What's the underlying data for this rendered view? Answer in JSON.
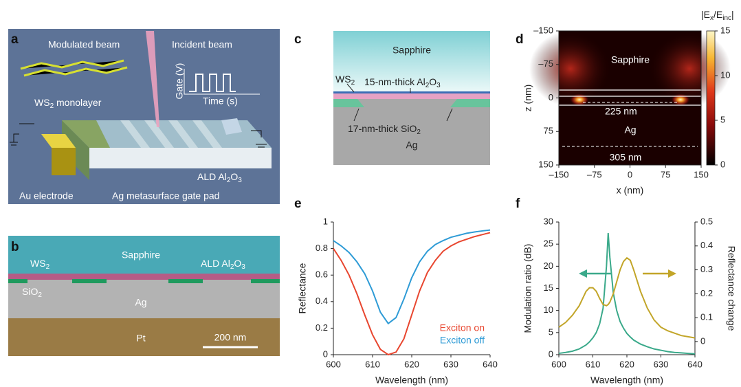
{
  "panels": {
    "a": {
      "label": "a",
      "modulated_beam": "Modulated beam",
      "incident_beam": "Incident beam",
      "gate_axis": "Gate (V)",
      "time_axis": "Time (s)",
      "ws2_monolayer": [
        "WS",
        "2",
        " monolayer"
      ],
      "ald": [
        "ALD Al",
        "2",
        "O",
        "3"
      ],
      "au_electrode": "Au electrode",
      "ag_pad": "Ag metasurface gate pad"
    },
    "b": {
      "label": "b",
      "sapphire": "Sapphire",
      "ws2": [
        "WS",
        "2"
      ],
      "ald": [
        "ALD Al",
        "2",
        "O",
        "3"
      ],
      "sio2": [
        "SiO",
        "2"
      ],
      "ag": "Ag",
      "pt": "Pt",
      "scale_bar": "200 nm"
    },
    "c": {
      "label": "c",
      "sapphire": "Sapphire",
      "ws2": [
        "WS",
        "2"
      ],
      "al2o3": [
        "15-nm-thick Al",
        "2",
        "O",
        "3"
      ],
      "sio2": [
        "17-nm-thick SiO",
        "2"
      ],
      "ag": "Ag"
    }
  },
  "chart_data": [
    {
      "type": "heatmap",
      "label": "d",
      "xlabel": "x (nm)",
      "ylabel": "z (nm)",
      "xlim": [
        -150,
        150
      ],
      "ylim": [
        150,
        -150
      ],
      "xticks": [
        {
          "value": -150,
          "label": "–150"
        },
        {
          "value": -75,
          "label": "–75"
        },
        0,
        75,
        150
      ],
      "yticks": [
        {
          "value": -150,
          "label": "–150"
        },
        {
          "value": -75,
          "label": "–75"
        },
        0,
        75,
        150
      ],
      "colorbar_label": [
        "|E",
        "x",
        "/E",
        "inc",
        "|"
      ],
      "clim": [
        0,
        15
      ],
      "cticks": [
        0,
        5,
        10,
        15
      ],
      "annotations": [
        "Sapphire",
        "225 nm",
        "Ag",
        "305 nm"
      ]
    },
    {
      "type": "line",
      "label": "e",
      "xlabel": "Wavelength (nm)",
      "ylabel": "Reflectance",
      "x": [
        600,
        602,
        604,
        606,
        608,
        610,
        612,
        614,
        616,
        618,
        620,
        622,
        624,
        626,
        628,
        630,
        632,
        634,
        636,
        638,
        640
      ],
      "series": [
        {
          "name": "Exciton on",
          "color": "#e8462f",
          "values": [
            0.8,
            0.71,
            0.6,
            0.46,
            0.3,
            0.15,
            0.04,
            0.0,
            0.02,
            0.12,
            0.3,
            0.48,
            0.62,
            0.71,
            0.78,
            0.82,
            0.85,
            0.87,
            0.89,
            0.905,
            0.92
          ]
        },
        {
          "name": "Exciton off",
          "color": "#2e9bd6",
          "values": [
            0.86,
            0.82,
            0.77,
            0.7,
            0.61,
            0.48,
            0.32,
            0.235,
            0.28,
            0.42,
            0.58,
            0.7,
            0.78,
            0.83,
            0.86,
            0.885,
            0.9,
            0.915,
            0.925,
            0.933,
            0.94
          ]
        }
      ],
      "xlim": [
        600,
        640
      ],
      "ylim": [
        0,
        1
      ],
      "xticks": [
        600,
        610,
        620,
        630,
        640
      ],
      "yticks": [
        0,
        0.2,
        0.4,
        0.6,
        0.8,
        1
      ]
    },
    {
      "type": "line",
      "label": "f",
      "xlabel": "Wavelength (nm)",
      "ylabel": "Modulation ratio (dB)",
      "y2label": "Reflectance change",
      "x": [
        600,
        602,
        604,
        606,
        608,
        609,
        610,
        611,
        612,
        613,
        614,
        614.5,
        615,
        616,
        617,
        618,
        619,
        620,
        621,
        622,
        624,
        626,
        628,
        630,
        632,
        634,
        636,
        638,
        640
      ],
      "series": [
        {
          "name": "Modulation ratio",
          "color": "#3aa98a",
          "values": [
            0.3,
            0.5,
            0.8,
            1.3,
            2.2,
            2.9,
            3.8,
            5.0,
            7.0,
            10.5,
            20,
            27.5,
            22,
            14,
            10,
            7.5,
            6,
            4.8,
            4,
            3.3,
            2.4,
            1.8,
            1.3,
            1.0,
            0.7,
            0.5,
            0.4,
            0.3,
            0.2
          ]
        },
        {
          "name": "Reflectance change",
          "color": "#c2a528",
          "axis": "y2",
          "values": [
            0.06,
            0.08,
            0.11,
            0.15,
            0.21,
            0.225,
            0.225,
            0.21,
            0.18,
            0.155,
            0.15,
            0.155,
            0.165,
            0.2,
            0.25,
            0.3,
            0.335,
            0.35,
            0.34,
            0.3,
            0.21,
            0.14,
            0.09,
            0.06,
            0.045,
            0.035,
            0.025,
            0.02,
            0.015
          ]
        }
      ],
      "xlim": [
        600,
        640
      ],
      "ylim": [
        0,
        30
      ],
      "y2lim": [
        -0.055,
        0.5
      ],
      "xticks": [
        600,
        610,
        620,
        630,
        640
      ],
      "yticks": [
        0,
        5,
        10,
        15,
        20,
        25,
        30
      ],
      "y2ticks": [
        0,
        0.1,
        0.2,
        0.3,
        0.4,
        0.5
      ]
    }
  ]
}
